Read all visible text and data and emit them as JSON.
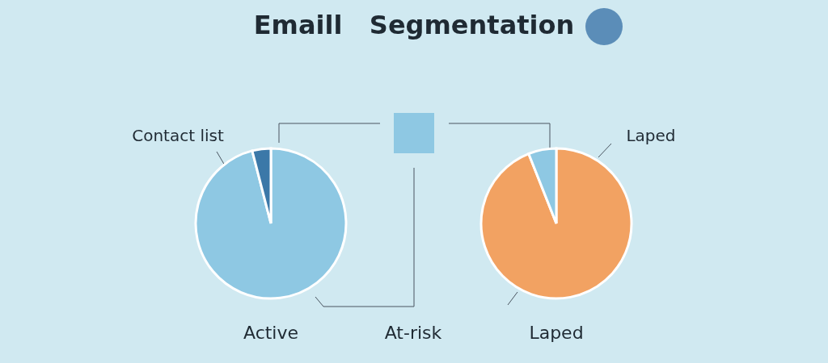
{
  "chart_data": [
    {
      "type": "other",
      "title": "Emaill   Segmentation"
    },
    {
      "type": "pie",
      "title": "Active",
      "categories": [
        "Contact list",
        null
      ],
      "values": [
        96,
        4
      ],
      "colors": [
        "#8ec8e3",
        "#3b78a8"
      ]
    },
    {
      "type": "other",
      "title": "At-risk"
    },
    {
      "type": "pie",
      "title": "Laped",
      "categories": [
        "Laped",
        null
      ],
      "values": [
        94,
        6
      ],
      "colors": [
        "#f2a262",
        "#8ec8e3"
      ]
    }
  ]
}
